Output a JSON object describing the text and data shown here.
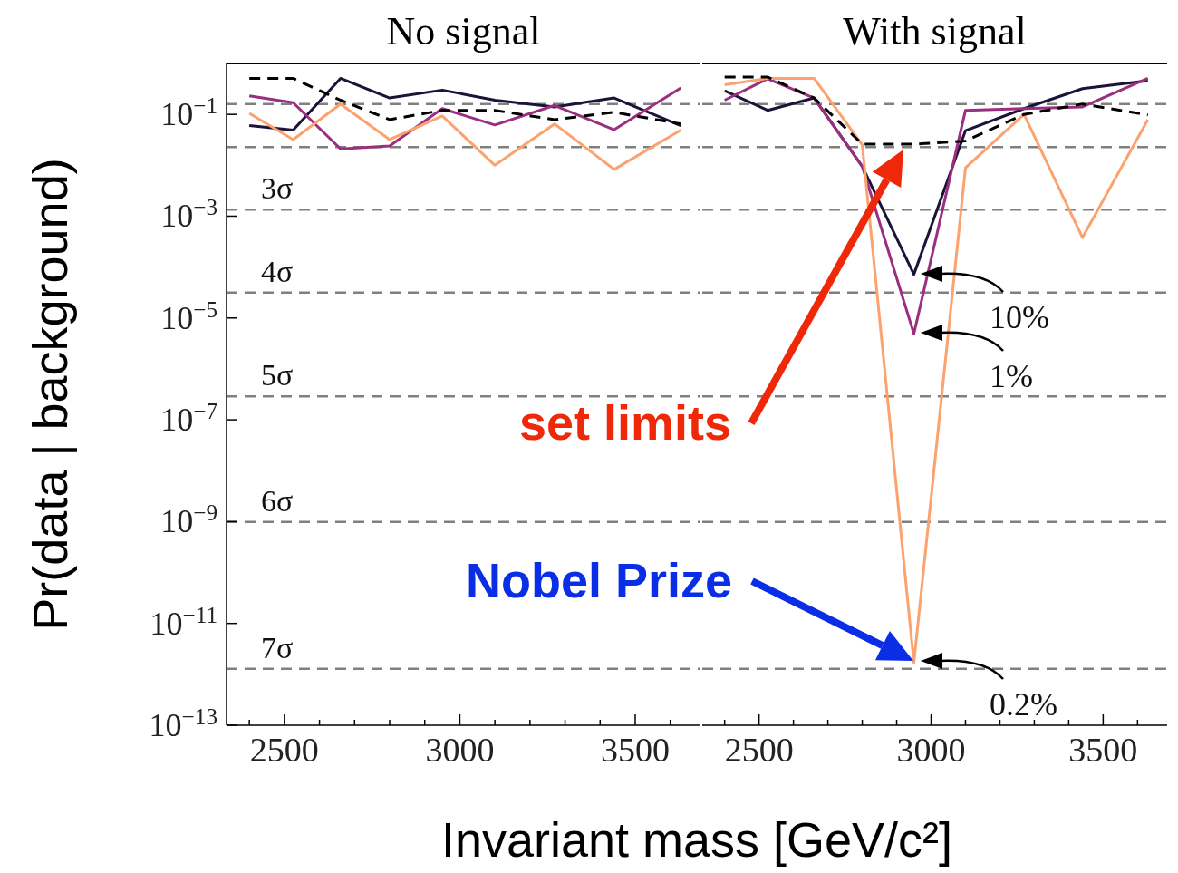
{
  "chart_data": [
    {
      "type": "line",
      "title": "No signal",
      "xlabel": "Invariant mass [GeV/c²]",
      "ylabel": "Pr(data | background)",
      "log": "y",
      "x": [
        2400,
        2525,
        2660,
        2800,
        2950,
        3100,
        3270,
        3440,
        3630
      ],
      "series": [
        {
          "color": "#1b1338",
          "values": [
            0.06,
            0.049,
            0.51,
            0.21,
            0.3,
            0.19,
            0.14,
            0.21,
            0.06
          ]
        },
        {
          "color": "#9b2f7f",
          "values": [
            0.23,
            0.17,
            0.021,
            0.024,
            0.13,
            0.062,
            0.15,
            0.05,
            0.33
          ]
        },
        {
          "color": "#fca26e",
          "values": [
            0.105,
            0.032,
            0.16,
            0.032,
            0.093,
            0.01,
            0.065,
            0.0083,
            0.049
          ]
        },
        {
          "color": "#000000",
          "line_style": "dashed",
          "values": [
            0.51,
            0.51,
            0.19,
            0.079,
            0.12,
            0.12,
            0.079,
            0.11,
            0.065
          ]
        }
      ],
      "xlim": [
        2335,
        3686
      ],
      "ylim": [
        1e-13,
        1
      ],
      "xticks": [
        {
          "value": 2400,
          "label": null
        },
        2500,
        {
          "value": 2600,
          "label": null
        },
        {
          "value": 2700,
          "label": null
        },
        {
          "value": 2800,
          "label": null
        },
        {
          "value": 2900,
          "label": null
        },
        3000,
        {
          "value": 3100,
          "label": null
        },
        {
          "value": 3200,
          "label": null
        },
        {
          "value": 3300,
          "label": null
        },
        {
          "value": 3400,
          "label": null
        },
        3500,
        {
          "value": 3600,
          "label": null
        }
      ],
      "yticks": [
        {
          "value": 0.1,
          "label": "10$^{−1}$"
        },
        {
          "value": 0.001,
          "label": "10$^{−3}$"
        },
        {
          "value": 1e-05,
          "label": "10$^{−5}$"
        },
        {
          "value": 1e-07,
          "label": "10$^{−7}$"
        },
        {
          "value": 1e-09,
          "label": "10$^{−9}$"
        },
        {
          "value": 1e-11,
          "label": "10$^{−11}$"
        },
        {
          "value": 1e-13,
          "label": "10$^{−13}$"
        }
      ],
      "ref_lines": [
        {
          "axis": "y",
          "value": 0.159,
          "color": "#808080",
          "line_style": "dashed"
        },
        {
          "axis": "y",
          "value": 0.0228,
          "color": "#808080",
          "line_style": "dashed"
        },
        {
          "axis": "y",
          "value": 0.00135,
          "label": "3σ",
          "color": "#808080",
          "line_style": "dashed"
        },
        {
          "axis": "y",
          "value": 3.17e-05,
          "label": "4σ",
          "color": "#808080",
          "line_style": "dashed"
        },
        {
          "axis": "y",
          "value": 2.87e-07,
          "label": "5σ",
          "color": "#808080",
          "line_style": "dashed"
        },
        {
          "axis": "y",
          "value": 9.87e-10,
          "label": "6σ",
          "color": "#808080",
          "line_style": "dashed"
        },
        {
          "axis": "y",
          "value": 1.28e-12,
          "label": "7σ",
          "color": "#808080",
          "line_style": "dashed"
        }
      ]
    },
    {
      "type": "line",
      "title": "With signal",
      "log": "y",
      "tick_labels": "x",
      "x": [
        2400,
        2525,
        2660,
        2800,
        2950,
        3100,
        3270,
        3440,
        3630
      ],
      "series": [
        {
          "color": "#1b1338",
          "values": [
            0.29,
            0.12,
            0.21,
            0.0095,
            7.2e-05,
            0.048,
            0.13,
            0.32,
            0.46
          ]
        },
        {
          "color": "#9b2f7f",
          "values": [
            0.19,
            0.5,
            0.21,
            0.0095,
            4.9e-06,
            0.12,
            0.13,
            0.14,
            0.51
          ]
        },
        {
          "color": "#fca26e",
          "values": [
            0.38,
            0.51,
            0.51,
            0.025,
            1.7e-12,
            0.0089,
            0.1,
            0.00038,
            0.079
          ]
        },
        {
          "color": "#000000",
          "line_style": "dashed",
          "values": [
            0.54,
            0.54,
            0.21,
            0.026,
            0.026,
            0.03,
            0.1,
            0.16,
            0.098
          ]
        }
      ],
      "xlim": [
        2335,
        3686
      ],
      "ylim": [
        1e-13,
        1
      ],
      "xticks": [
        {
          "value": 2400,
          "label": null
        },
        2500,
        {
          "value": 2600,
          "label": null
        },
        {
          "value": 2700,
          "label": null
        },
        {
          "value": 2800,
          "label": null
        },
        {
          "value": 2900,
          "label": null
        },
        3000,
        {
          "value": 3100,
          "label": null
        },
        {
          "value": 3200,
          "label": null
        },
        {
          "value": 3300,
          "label": null
        },
        {
          "value": 3400,
          "label": null
        },
        3500,
        {
          "value": 3600,
          "label": null
        }
      ],
      "yticks": [
        {
          "value": 0.1,
          "label": null
        },
        {
          "value": 0.001,
          "label": null
        },
        {
          "value": 1e-05,
          "label": null
        },
        {
          "value": 1e-07,
          "label": null
        },
        {
          "value": 1e-09,
          "label": null
        },
        {
          "value": 1e-11,
          "label": null
        },
        {
          "value": 1e-13,
          "label": null
        }
      ],
      "ref_lines": [
        {
          "axis": "y",
          "value": 0.159,
          "color": "#808080",
          "line_style": "dashed"
        },
        {
          "axis": "y",
          "value": 0.0228,
          "color": "#808080",
          "line_style": "dashed"
        },
        {
          "axis": "y",
          "value": 0.00135,
          "color": "#808080",
          "line_style": "dashed"
        },
        {
          "axis": "y",
          "value": 3.17e-05,
          "color": "#808080",
          "line_style": "dashed"
        },
        {
          "axis": "y",
          "value": 2.87e-07,
          "color": "#808080",
          "line_style": "dashed"
        },
        {
          "axis": "y",
          "value": 9.87e-10,
          "color": "#808080",
          "line_style": "dashed"
        },
        {
          "axis": "y",
          "value": 1.28e-12,
          "color": "#808080",
          "line_style": "dashed"
        }
      ],
      "annotations": [
        "set limits",
        "Nobel Prize",
        "10%",
        "1%",
        "0.2%"
      ]
    }
  ]
}
